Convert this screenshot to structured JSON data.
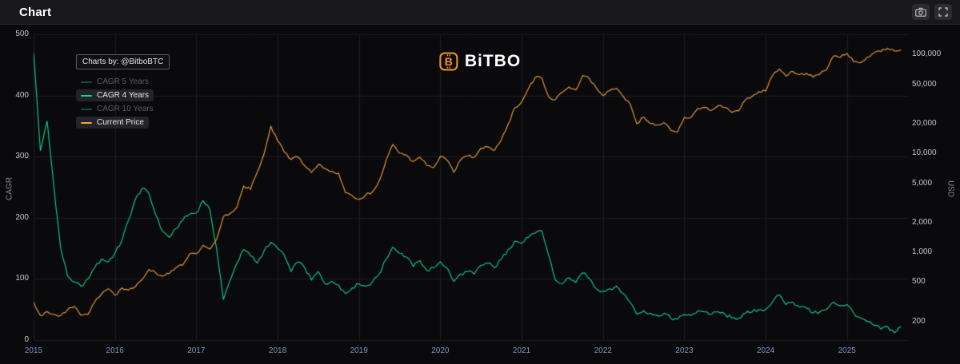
{
  "header": {
    "title": "Chart",
    "buttons": [
      {
        "name": "screenshot",
        "icon": "camera-icon"
      },
      {
        "name": "fullscreen",
        "icon": "fullscreen-icon"
      }
    ]
  },
  "watermark": {
    "brand": "BiTBO",
    "icon": "bitcoin-icon",
    "color": "#f7941d"
  },
  "legend": {
    "credit": "Charts by: @BitboBTC",
    "items": [
      {
        "label": "CAGR 5 Years",
        "color": "#0fd48a",
        "active": false
      },
      {
        "label": "CAGR 4 Years",
        "color": "#0fd48a",
        "active": true
      },
      {
        "label": "CAGR 10 Years",
        "color": "#0fd48a",
        "active": false
      },
      {
        "label": "Current Price",
        "color": "#f2a33c",
        "active": true
      }
    ]
  },
  "colors": {
    "background": "#0a0a0d",
    "header_bg": "#18181c",
    "grid": "#1e1e23",
    "axis_text": "#c6c6c6",
    "year_text": "#7d93bd",
    "accent_green": "#0fd48a",
    "accent_orange": "#f2a33c",
    "brand_orange": "#f7941d"
  },
  "chart_data": {
    "type": "line",
    "title": "Chart",
    "legend_position": "top-left",
    "grid": true,
    "x_start": 2015.0,
    "x_step": 0.0833333,
    "x_axis": {
      "ticks": [
        2015,
        2016,
        2017,
        2018,
        2019,
        2020,
        2021,
        2022,
        2023,
        2024,
        2025
      ],
      "range": [
        2015,
        2025.75
      ]
    },
    "y_axis_left": {
      "label": "CAGR",
      "range": [
        0,
        500
      ],
      "ticks": [
        0,
        100,
        200,
        300,
        400,
        500
      ]
    },
    "y_axis_right": {
      "label": "USD",
      "scale": "log",
      "range": [
        130,
        160000
      ],
      "ticks": [
        200,
        500,
        1000,
        2000,
        5000,
        10000,
        20000,
        50000,
        100000
      ],
      "tick_labels": [
        "200",
        "500",
        "1,000",
        "2,000",
        "5,000",
        "10,000",
        "20,000",
        "50,000",
        "100,000"
      ]
    },
    "series": [
      {
        "name": "CAGR 4 Years",
        "axis": "left",
        "color": "#0fd48a",
        "values": [
          470,
          310,
          358,
          250,
          150,
          105,
          95,
          88,
          100,
          118,
          132,
          128,
          142,
          162,
          196,
          230,
          248,
          240,
          205,
          178,
          168,
          182,
          196,
          206,
          208,
          228,
          214,
          150,
          66,
          98,
          126,
          148,
          138,
          126,
          146,
          160,
          150,
          138,
          112,
          128,
          118,
          98,
          112,
          92,
          96,
          90,
          76,
          85,
          92,
          88,
          95,
          108,
          132,
          152,
          142,
          136,
          120,
          130,
          114,
          118,
          128,
          118,
          96,
          108,
          112,
          108,
          122,
          126,
          118,
          132,
          148,
          162,
          158,
          168,
          175,
          178,
          138,
          98,
          92,
          102,
          94,
          110,
          100,
          84,
          80,
          84,
          88,
          76,
          62,
          42,
          48,
          44,
          40,
          44,
          36,
          34,
          42,
          40,
          48,
          46,
          42,
          46,
          42,
          36,
          36,
          44,
          46,
          50,
          50,
          62,
          74,
          58,
          62,
          54,
          52,
          44,
          46,
          50,
          62,
          56,
          58,
          44,
          36,
          30,
          24,
          18,
          22,
          12,
          22
        ]
      },
      {
        "name": "Current Price",
        "axis": "right",
        "color": "#f2a33c",
        "values": [
          315,
          230,
          252,
          236,
          230,
          263,
          284,
          231,
          236,
          314,
          377,
          430,
          368,
          437,
          416,
          448,
          531,
          673,
          624,
          575,
          610,
          700,
          742,
          963,
          970,
          1180,
          1080,
          1350,
          2300,
          2480,
          2875,
          4700,
          4340,
          6470,
          9900,
          18900,
          13400,
          10300,
          8700,
          9240,
          7500,
          6400,
          7730,
          7030,
          6620,
          6300,
          4020,
          3740,
          3440,
          3815,
          4105,
          5320,
          8560,
          12300,
          10090,
          9630,
          8310,
          9150,
          7570,
          7190,
          9350,
          8545,
          6440,
          8660,
          9450,
          9140,
          11320,
          11680,
          10780,
          13800,
          19700,
          28990,
          33110,
          45160,
          58760,
          57720,
          37300,
          35030,
          41550,
          47130,
          43820,
          61300,
          56990,
          46220,
          38490,
          43190,
          45510,
          37650,
          31780,
          19990,
          23300,
          20050,
          19430,
          20490,
          17160,
          16540,
          23130,
          23140,
          28470,
          29230,
          27210,
          30470,
          29230,
          25930,
          26960,
          34660,
          37720,
          42270,
          42580,
          61170,
          71330,
          60640,
          67490,
          62670,
          64620,
          58970,
          63330,
          70220,
          96450,
          93430,
          102400,
          84370,
          82550,
          94210,
          104600,
          107140,
          115760,
          108240,
          111000
        ]
      }
    ]
  }
}
